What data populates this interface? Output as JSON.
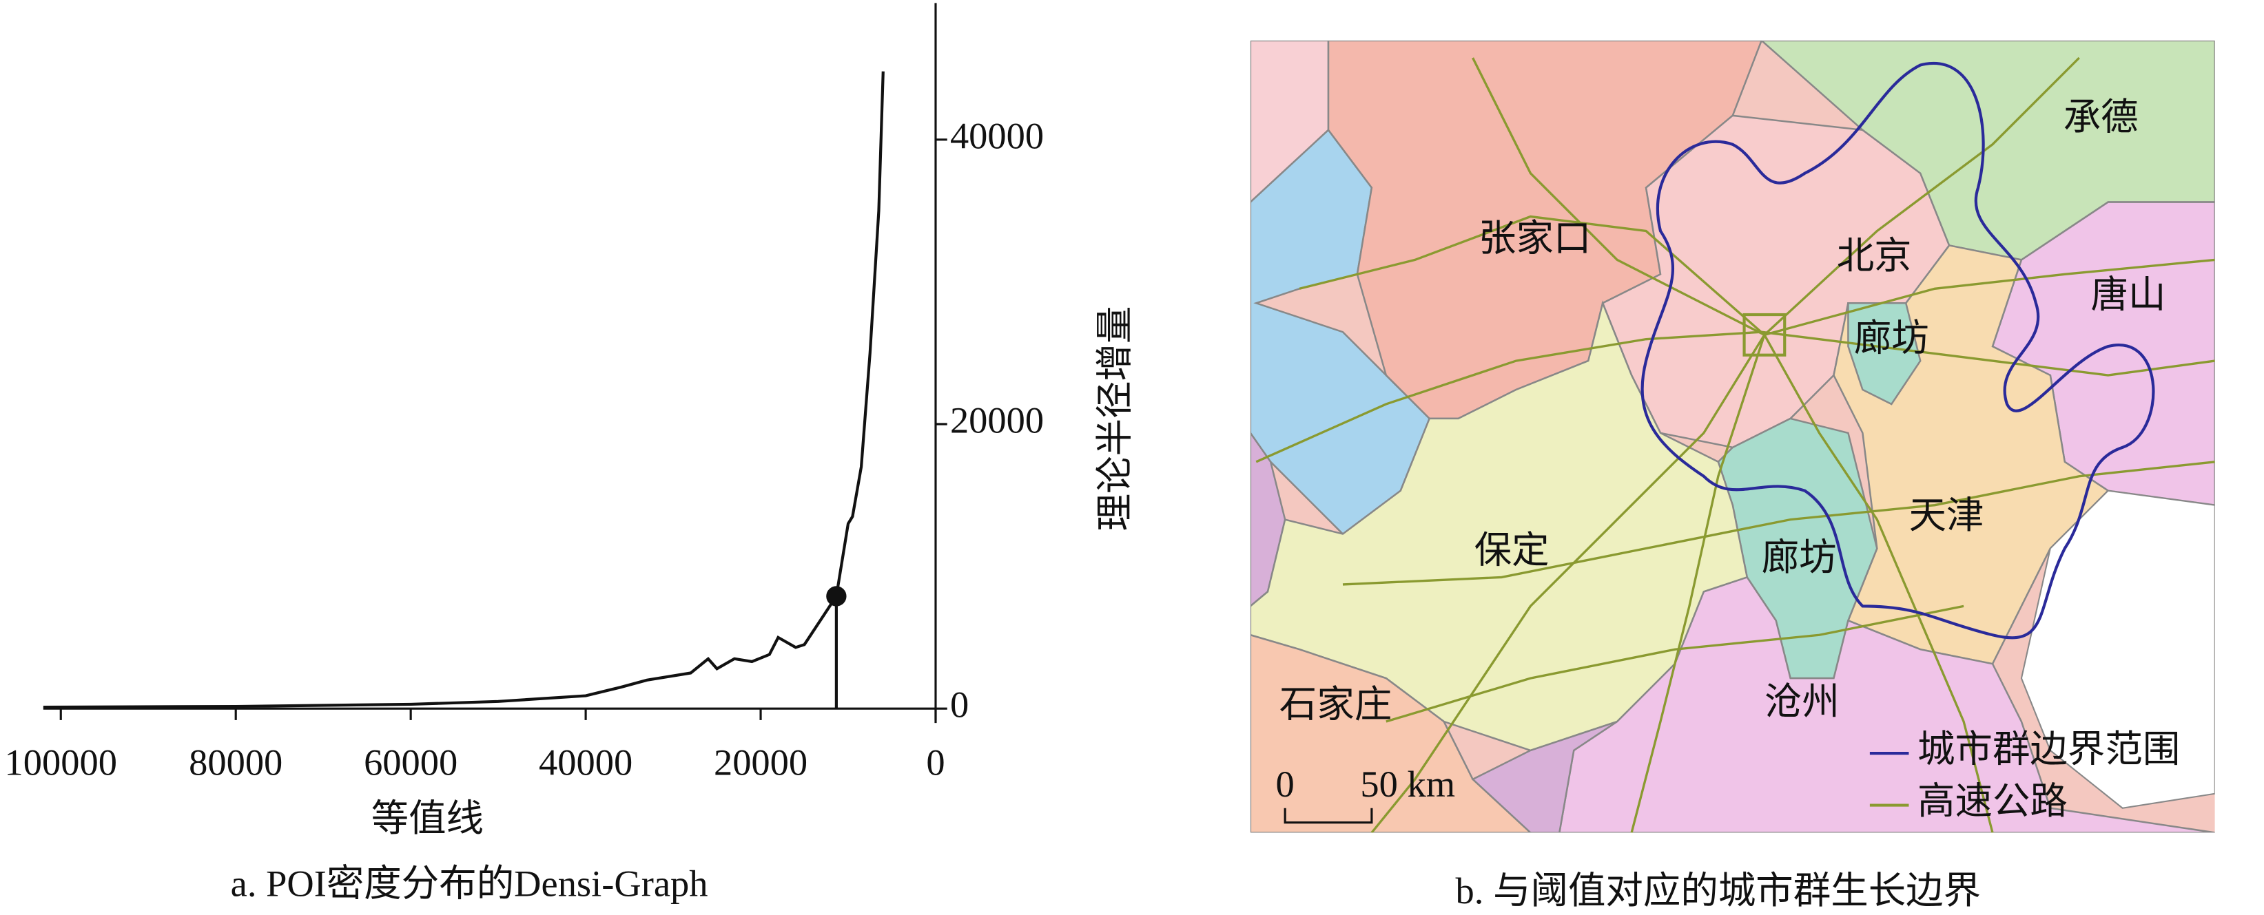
{
  "chart_data": {
    "type": "line",
    "caption": "a. POI密度分布的Densi-Graph",
    "x_label": "等值线",
    "y_label": "理论半径增量",
    "x": [
      102000,
      80000,
      60000,
      50000,
      40000,
      36000,
      33000,
      28000,
      26000,
      25000,
      23000,
      21000,
      19000,
      18000,
      16000,
      15000,
      11350,
      10000,
      9500,
      8500,
      7500,
      6500,
      6000
    ],
    "series": [
      {
        "color": "#111111",
        "values": [
          100,
          150,
          300,
          500,
          900,
          1500,
          2000,
          2500,
          3500,
          2800,
          3500,
          3300,
          3800,
          5000,
          4300,
          4500,
          7900,
          13000,
          13500,
          17000,
          25000,
          35000,
          44800
        ]
      }
    ],
    "threshold": {
      "x": 11350,
      "y": 7900
    },
    "xlim": [
      102000,
      0
    ],
    "xticks": [
      100000,
      80000,
      60000,
      40000,
      20000,
      0
    ],
    "ylim": [
      0,
      49000
    ],
    "yticks": [
      0,
      20000,
      40000
    ]
  },
  "map": {
    "caption": "b. 与阈值对应的城市群生长边界",
    "labels": [
      "张家口",
      "北京",
      "承德",
      "唐山",
      "廊坊",
      "天津",
      "保定",
      "廊坊",
      "沧州",
      "石家庄"
    ],
    "legend": [
      "城市群边界范围",
      "高速公路"
    ],
    "scale": [
      "0",
      "50 km"
    ]
  }
}
